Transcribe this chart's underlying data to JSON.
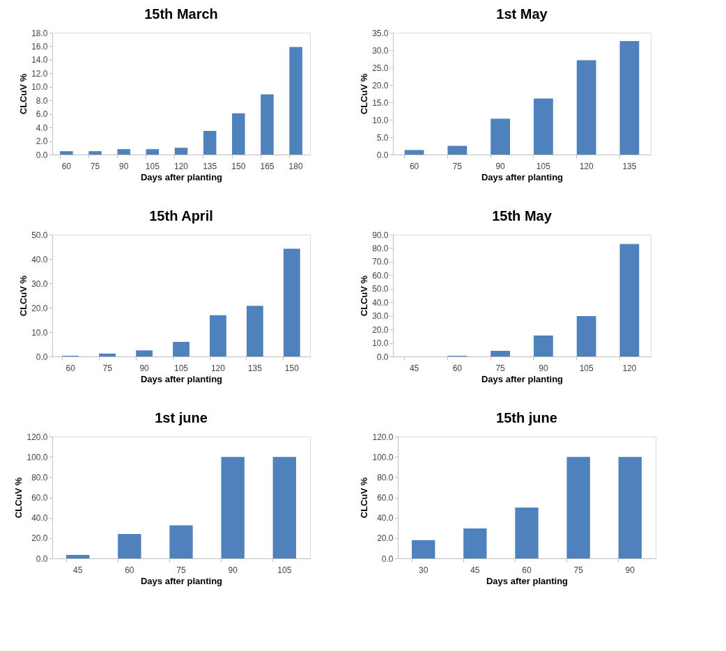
{
  "chart_data": [
    {
      "type": "bar",
      "title": "15th March",
      "xlabel": "Days after planting",
      "ylabel": "CLCuV %",
      "color": "#4f81bd",
      "grid": false,
      "categories": [
        "60",
        "75",
        "90",
        "105",
        "120",
        "135",
        "150",
        "165",
        "180"
      ],
      "values": [
        0.5,
        0.5,
        0.8,
        0.8,
        1.0,
        3.5,
        6.1,
        8.9,
        15.9
      ],
      "ylim": [
        0,
        18
      ],
      "yticks": [
        {
          "value": 0,
          "label": "0.0"
        },
        {
          "value": 2,
          "label": "2.0"
        },
        {
          "value": 4,
          "label": "4.0"
        },
        {
          "value": 6,
          "label": "6.0"
        },
        {
          "value": 8,
          "label": "8.0"
        },
        {
          "value": 10,
          "label": "10.0"
        },
        {
          "value": 12,
          "label": "12.0"
        },
        {
          "value": 14,
          "label": "14.0"
        },
        {
          "value": 16,
          "label": "16.0"
        },
        {
          "value": 18,
          "label": "18.0"
        }
      ]
    },
    {
      "type": "bar",
      "title": "1st May",
      "xlabel": "Days after planting",
      "ylabel": "CLCuV %",
      "color": "#4f81bd",
      "grid": false,
      "categories": [
        "60",
        "75",
        "90",
        "105",
        "120",
        "135"
      ],
      "values": [
        1.3,
        2.5,
        10.3,
        16.1,
        27.1,
        32.6
      ],
      "ylim": [
        0,
        35
      ],
      "yticks": [
        {
          "value": 0,
          "label": "0.0"
        },
        {
          "value": 5,
          "label": "5.0"
        },
        {
          "value": 10,
          "label": "10.0"
        },
        {
          "value": 15,
          "label": "15.0"
        },
        {
          "value": 20,
          "label": "20.0"
        },
        {
          "value": 25,
          "label": "25.0"
        },
        {
          "value": 30,
          "label": "30.0"
        },
        {
          "value": 35,
          "label": "35.0"
        }
      ]
    },
    {
      "type": "bar",
      "title": "15th April",
      "xlabel": "Days after planting",
      "ylabel": "CLCuV %",
      "color": "#4f81bd",
      "grid": false,
      "categories": [
        "60",
        "75",
        "90",
        "105",
        "120",
        "135",
        "150"
      ],
      "values": [
        0.3,
        1.2,
        2.5,
        6.0,
        16.9,
        20.8,
        44.2
      ],
      "ylim": [
        0,
        50
      ],
      "yticks": [
        {
          "value": 0,
          "label": "0.0"
        },
        {
          "value": 10,
          "label": "10.0"
        },
        {
          "value": 20,
          "label": "20.0"
        },
        {
          "value": 30,
          "label": "30.0"
        },
        {
          "value": 40,
          "label": "40.0"
        },
        {
          "value": 50,
          "label": "50.0"
        }
      ]
    },
    {
      "type": "bar",
      "title": "15th May",
      "xlabel": "Days after planting",
      "ylabel": "CLCuV %",
      "color": "#4f81bd",
      "grid": false,
      "categories": [
        "45",
        "60",
        "75",
        "90",
        "105",
        "120"
      ],
      "values": [
        0,
        0.5,
        4.2,
        15.5,
        29.8,
        83.0
      ],
      "ylim": [
        0,
        90
      ],
      "yticks": [
        {
          "value": 0,
          "label": "0.0"
        },
        {
          "value": 10,
          "label": "10.0"
        },
        {
          "value": 20,
          "label": "20.0"
        },
        {
          "value": 30,
          "label": "30.0"
        },
        {
          "value": 40,
          "label": "40.0"
        },
        {
          "value": 50,
          "label": "50.0"
        },
        {
          "value": 60,
          "label": "60.0"
        },
        {
          "value": 70,
          "label": "70.0"
        },
        {
          "value": 80,
          "label": "80.0"
        },
        {
          "value": 90,
          "label": "90.0"
        }
      ]
    },
    {
      "type": "bar",
      "title": "1st june",
      "xlabel": "Days after planting",
      "ylabel": "CLCuV %",
      "color": "#4f81bd",
      "grid": false,
      "categories": [
        "45",
        "60",
        "75",
        "90",
        "105"
      ],
      "values": [
        3.5,
        24,
        32.5,
        100,
        100
      ],
      "ylim": [
        0,
        120
      ],
      "yticks": [
        {
          "value": 0,
          "label": "0.0"
        },
        {
          "value": 20,
          "label": "20.0"
        },
        {
          "value": 40,
          "label": "40.0"
        },
        {
          "value": 60,
          "label": "60.0"
        },
        {
          "value": 80,
          "label": "80.0"
        },
        {
          "value": 100,
          "label": "100.0"
        },
        {
          "value": 120,
          "label": "120.0"
        }
      ]
    },
    {
      "type": "bar",
      "title": "15th june",
      "xlabel": "Days after planting",
      "ylabel": "CLCuV %",
      "color": "#4f81bd",
      "grid": false,
      "categories": [
        "30",
        "45",
        "60",
        "75",
        "90"
      ],
      "values": [
        18,
        29.5,
        50,
        100,
        100
      ],
      "ylim": [
        0,
        120
      ],
      "yticks": [
        {
          "value": 0,
          "label": "0.0"
        },
        {
          "value": 20,
          "label": "20.0"
        },
        {
          "value": 40,
          "label": "40.0"
        },
        {
          "value": 60,
          "label": "60.0"
        },
        {
          "value": 80,
          "label": "80.0"
        },
        {
          "value": 100,
          "label": "100.0"
        },
        {
          "value": 120,
          "label": "120.0"
        }
      ]
    }
  ]
}
